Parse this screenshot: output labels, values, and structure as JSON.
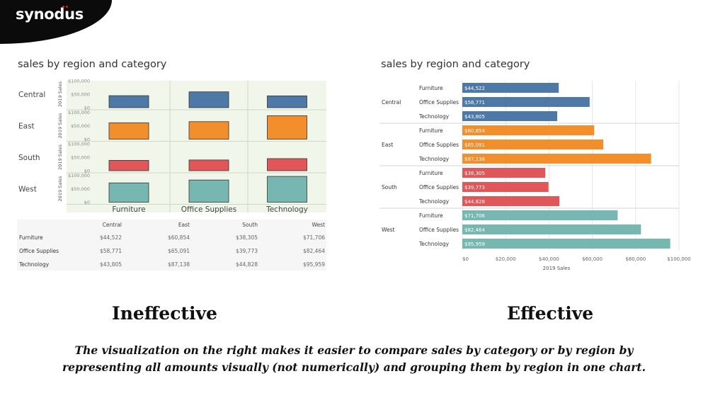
{
  "brand": {
    "logo_text": "synodus"
  },
  "left_panel": {
    "title": "sales by region and category",
    "caption": "Ineffective",
    "axis_label": "2019 Sales",
    "y_ticks": [
      "$100,000",
      "$50,000",
      "$0"
    ],
    "table": {
      "headers": [
        "Central",
        "East",
        "South",
        "West"
      ],
      "rows": [
        {
          "label": "Furniture",
          "values": [
            "$44,522",
            "$60,854",
            "$38,305",
            "$71,706"
          ]
        },
        {
          "label": "Office Supplies",
          "values": [
            "$58,771",
            "$65,091",
            "$39,773",
            "$82,464"
          ]
        },
        {
          "label": "Technology",
          "values": [
            "$43,805",
            "$87,138",
            "$44,828",
            "$95,959"
          ]
        }
      ]
    }
  },
  "right_panel": {
    "title": "sales by region and category",
    "caption": "Effective",
    "x_ticks": [
      "$0",
      "$20,000",
      "$40,000",
      "$60,000",
      "$80,000",
      "$100,000"
    ]
  },
  "description": {
    "line1": "The visualization on the right makes it easier to compare sales by category or by region by",
    "line2": "representing all amounts visually (not numerically) and grouping them by region in one chart."
  },
  "colors": {
    "Central": "#4e79a7",
    "East": "#f28e2b",
    "South": "#e15759",
    "West": "#76b7b2",
    "left_bg": "#f1f6ea"
  },
  "chart_data": [
    {
      "type": "bar",
      "title": "sales by region and category",
      "ylabel": "2019 Sales",
      "ylim": [
        0,
        100000
      ],
      "categories": [
        "Furniture",
        "Office Supplies",
        "Technology"
      ],
      "series": [
        {
          "name": "Central",
          "values": [
            44522,
            58771,
            43805
          ]
        },
        {
          "name": "East",
          "values": [
            60854,
            65091,
            87138
          ]
        },
        {
          "name": "South",
          "values": [
            38305,
            39773,
            44828
          ]
        },
        {
          "name": "West",
          "values": [
            71706,
            82464,
            95959
          ]
        }
      ],
      "grid": true
    },
    {
      "type": "bar",
      "orientation": "horizontal",
      "title": "sales by region and category",
      "xlabel": "2019 Sales",
      "xlim": [
        0,
        100000
      ],
      "groups": [
        {
          "region": "Central",
          "items": [
            {
              "category": "Furniture",
              "value": 44522,
              "label": "$44,522"
            },
            {
              "category": "Office Supplies",
              "value": 58771,
              "label": "$58,771"
            },
            {
              "category": "Technology",
              "value": 43805,
              "label": "$43,805"
            }
          ]
        },
        {
          "region": "East",
          "items": [
            {
              "category": "Furniture",
              "value": 60854,
              "label": "$60,854"
            },
            {
              "category": "Office Supplies",
              "value": 65091,
              "label": "$65,091"
            },
            {
              "category": "Technology",
              "value": 87138,
              "label": "$87,138"
            }
          ]
        },
        {
          "region": "South",
          "items": [
            {
              "category": "Furniture",
              "value": 38305,
              "label": "$38,305"
            },
            {
              "category": "Office Supplies",
              "value": 39773,
              "label": "$39,773"
            },
            {
              "category": "Technology",
              "value": 44828,
              "label": "$44,828"
            }
          ]
        },
        {
          "region": "West",
          "items": [
            {
              "category": "Furniture",
              "value": 71706,
              "label": "$71,706"
            },
            {
              "category": "Office Supplies",
              "value": 82464,
              "label": "$82,464"
            },
            {
              "category": "Technology",
              "value": 95959,
              "label": "$95,959"
            }
          ]
        }
      ],
      "grid": true
    }
  ]
}
